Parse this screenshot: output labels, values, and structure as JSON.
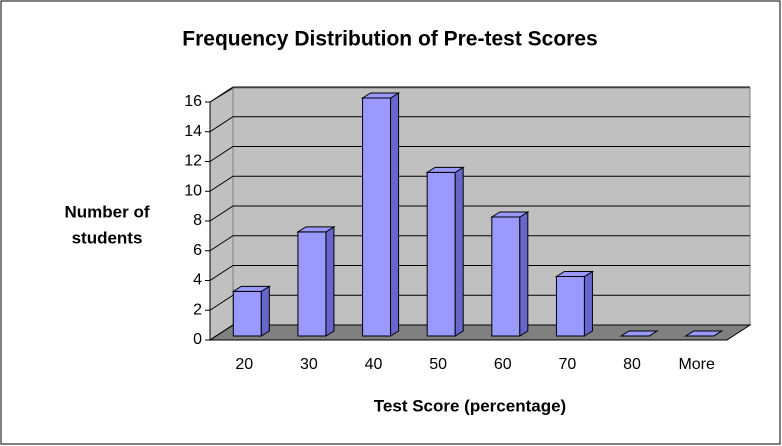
{
  "chart_data": {
    "type": "bar",
    "title": "Frequency Distribution of Pre-test Scores",
    "x_label": "Test Score (percentage)",
    "y_label": [
      "Number of",
      "students"
    ],
    "categories": [
      "20",
      "30",
      "40",
      "50",
      "60",
      "70",
      "80",
      "More"
    ],
    "values": [
      3,
      7,
      16,
      11,
      8,
      4,
      0,
      0
    ],
    "color": "#9999ff",
    "ylim": [
      0,
      16
    ],
    "yticks": [
      0,
      2,
      4,
      6,
      8,
      10,
      12,
      14,
      16
    ],
    "grid": true
  }
}
